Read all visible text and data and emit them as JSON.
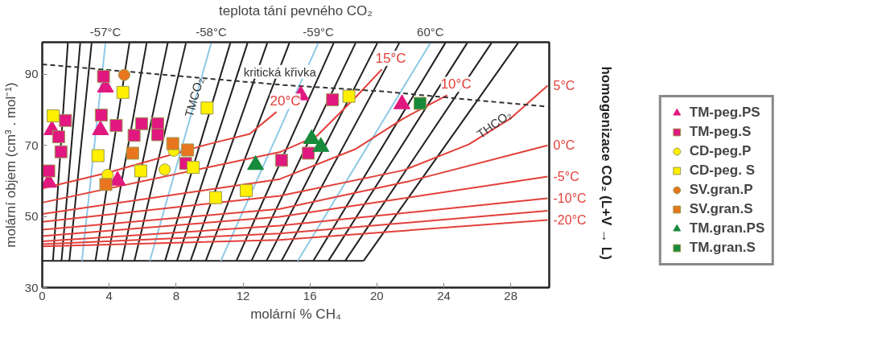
{
  "chart_data": {
    "type": "scatter",
    "xlabel": "molární % CH₄",
    "ylabel": "molární objem (cm³ . mol⁻¹)",
    "x2label": "teplota tání pevného CO₂",
    "y2label": "homogenizace  CO₂ (L+V → L)",
    "xlim": [
      0,
      30.3
    ],
    "ylim": [
      30,
      99
    ],
    "xticks": [
      0,
      4,
      8,
      12,
      16,
      20,
      24,
      28
    ],
    "yticks": [
      30,
      50,
      70,
      90
    ],
    "grid": false,
    "legend": "right",
    "annotations": [
      {
        "text": "kritická křivka",
        "x": 14.2,
        "y": 90.7
      },
      {
        "text": "TMCO₂",
        "x": 9.06,
        "y": 83.5
      },
      "THCO₂"
    ],
    "series": [
      {
        "type": "line",
        "color": "#231f20",
        "x": [
          0,
          19.2
        ],
        "values": [
          37.5,
          37.5
        ]
      },
      {
        "type": "line",
        "color": "#231f20",
        "x": [
          0.64,
          1.53
        ],
        "values": [
          37.5,
          98.8
        ]
      },
      {
        "type": "line",
        "color": "#231f20",
        "x": [
          1.15,
          2.27
        ],
        "values": [
          37.5,
          98.8
        ]
      },
      {
        "type": "line",
        "color": "#231f20",
        "x": [
          1.62,
          2.95
        ],
        "values": [
          37.5,
          98.8
        ]
      },
      {
        "type": "line",
        "color": "#231f20",
        "x": [
          3.18,
          5.21
        ],
        "values": [
          37.5,
          98.8
        ]
      },
      {
        "type": "line",
        "color": "#231f20",
        "x": [
          3.89,
          6.24
        ],
        "values": [
          37.5,
          98.8
        ]
      },
      {
        "type": "line",
        "color": "#231f20",
        "x": [
          4.76,
          7.5
        ],
        "values": [
          37.5,
          98.8
        ]
      },
      {
        "type": "line",
        "color": "#231f20",
        "x": [
          5.51,
          8.59
        ],
        "values": [
          37.5,
          98.8
        ]
      },
      {
        "type": "line",
        "color": "#231f20",
        "x": [
          7.34,
          11.24
        ],
        "values": [
          37.5,
          98.8
        ]
      },
      {
        "type": "line",
        "color": "#231f20",
        "x": [
          8.05,
          12.27
        ],
        "values": [
          37.5,
          98.8
        ]
      },
      {
        "type": "line",
        "color": "#231f20",
        "x": [
          8.86,
          13.45
        ],
        "values": [
          37.5,
          98.8
        ]
      },
      {
        "type": "line",
        "color": "#231f20",
        "x": [
          9.77,
          14.77
        ],
        "values": [
          37.5,
          98.8
        ]
      },
      {
        "type": "line",
        "color": "#231f20",
        "x": [
          11.6,
          17.42
        ],
        "values": [
          37.5,
          98.8
        ]
      },
      {
        "type": "line",
        "color": "#231f20",
        "x": [
          12.5,
          18.73
        ],
        "values": [
          37.5,
          98.8
        ]
      },
      {
        "type": "line",
        "color": "#231f20",
        "x": [
          13.4,
          20.03
        ],
        "values": [
          37.5,
          98.8
        ]
      },
      {
        "type": "line",
        "color": "#231f20",
        "x": [
          14.3,
          21.34
        ],
        "values": [
          37.5,
          98.8
        ]
      },
      {
        "type": "line",
        "color": "#231f20",
        "x": [
          16.2,
          24.09
        ],
        "values": [
          37.5,
          98.8
        ]
      },
      {
        "type": "line",
        "color": "#231f20",
        "x": [
          17.1,
          25.4
        ],
        "values": [
          37.5,
          98.8
        ]
      },
      {
        "type": "line",
        "color": "#231f20",
        "x": [
          18.1,
          26.85
        ],
        "values": [
          37.5,
          98.8
        ]
      },
      {
        "type": "line",
        "color": "#231f20",
        "x": [
          19.2,
          28.44
        ],
        "values": [
          37.5,
          98.8
        ]
      },
      {
        "type": "line",
        "name": "-57°C",
        "color": "#8ec9e6",
        "x": [
          2.37,
          3.78
        ],
        "values": [
          37.5,
          98.8
        ]
      },
      {
        "type": "line",
        "name": "-58°C",
        "color": "#8ec9e6",
        "x": [
          6.43,
          10.1
        ],
        "values": [
          37.5,
          98.8
        ]
      },
      {
        "type": "line",
        "name": "-59°C",
        "color": "#8ec9e6",
        "x": [
          10.67,
          16.5
        ],
        "values": [
          37.5,
          98.8
        ]
      },
      {
        "type": "line",
        "name": "60°C",
        "color": "#8ec9e6",
        "x": [
          15.27,
          23.2
        ],
        "values": [
          37.5,
          98.8
        ]
      },
      {
        "type": "line",
        "name": "20°C",
        "color": "#e2403a",
        "x": [
          0,
          3.9,
          9.9,
          12.4,
          14
        ],
        "values": [
          57.9,
          62.3,
          70.3,
          73.2,
          79.4
        ]
      },
      {
        "type": "line",
        "name": "15°C",
        "color": "#e2403a",
        "x": [
          0,
          14.2,
          16.4,
          18.7,
          20.3
        ],
        "values": [
          53.9,
          68.1,
          72.6,
          83.4,
          91.4
        ]
      },
      {
        "type": "line",
        "name": "10°C",
        "color": "#e2403a",
        "x": [
          0,
          14.2,
          18.7,
          21.6,
          24.2
        ],
        "values": [
          50.7,
          60.5,
          68.9,
          77.6,
          84.1
        ]
      },
      {
        "type": "line",
        "name": "5°C",
        "color": "#e2403a",
        "x": [
          0,
          14.2,
          21.6,
          25.5,
          28,
          30.2
        ],
        "values": [
          48.5,
          55.8,
          63,
          70.3,
          77.6,
          86.8
        ]
      },
      {
        "type": "line",
        "name": "0°C",
        "color": "#e2403a",
        "x": [
          0,
          14.2,
          22,
          30.2
        ],
        "values": [
          46.3,
          52.1,
          60,
          70
        ]
      },
      {
        "type": "line",
        "name": "-5°C",
        "color": "#e2403a",
        "x": [
          0,
          14.2,
          30.2
        ],
        "values": [
          44.5,
          49.9,
          61.2
        ]
      },
      {
        "type": "line",
        "name": "-10°C",
        "color": "#e2403a",
        "x": [
          0,
          14.2,
          30.2
        ],
        "values": [
          43,
          47.4,
          55.1
        ]
      },
      {
        "type": "line",
        "color": "#e2403a",
        "x": [
          0,
          14.2,
          30.2
        ],
        "values": [
          42.2,
          45.2,
          51.6
        ]
      },
      {
        "type": "line",
        "name": "-20°C",
        "color": "#e2403a",
        "x": [
          0,
          14.2,
          30.2
        ],
        "values": [
          41.6,
          43.4,
          49
        ]
      },
      {
        "type": "line",
        "color": "#333333",
        "line_style": "dashed",
        "x": [
          0,
          14.3,
          20.3,
          26.1,
          30.2
        ],
        "values": [
          92.8,
          87,
          85.2,
          82.6,
          80.9
        ]
      },
      {
        "name": "TM-peg.PS",
        "marker": "triangle",
        "color": "#e0187f",
        "x": [
          0.39,
          0.58,
          3.78,
          3.48,
          4.5,
          15.45,
          21.5
        ],
        "values": [
          59.5,
          74.3,
          86.3,
          74.3,
          60.1,
          84.1,
          81.6
        ]
      },
      {
        "name": "TM-peg.S",
        "marker": "square",
        "color": "#e0187f",
        "x": [
          0.39,
          1.39,
          0.98,
          1.12,
          3.66,
          3.53,
          4.42,
          5.49,
          5.94,
          6.9,
          6.9,
          8.57,
          14.3,
          17.35,
          15.9
        ],
        "values": [
          62.8,
          77,
          72.4,
          68.2,
          89.4,
          78.5,
          75.6,
          72.8,
          76.1,
          76.1,
          73,
          64.9,
          65.8,
          82.8,
          67.8
        ]
      },
      {
        "name": "CD-peg.P",
        "marker": "circle",
        "color": "#ffef00",
        "x": [
          3.9,
          7.32,
          7.86
        ],
        "values": [
          61.7,
          63.2,
          68.5
        ]
      },
      {
        "name": "CD-peg. S",
        "marker": "square",
        "color": "#ffef00",
        "x": [
          0.65,
          4.82,
          9.85,
          3.33,
          5.89,
          9.02,
          10.36,
          12.19,
          18.33
        ],
        "values": [
          78.3,
          84.9,
          80.5,
          67.1,
          62.8,
          63.8,
          55.3,
          57.3,
          83.8
        ]
      },
      {
        "name": "SV.gran.P",
        "marker": "circle",
        "color": "#e8761f",
        "x": [
          4.9
        ],
        "values": [
          89.8
        ]
      },
      {
        "name": "SV.gran.S",
        "marker": "square",
        "color": "#e8761f",
        "x": [
          7.8,
          5.4,
          8.69,
          3.8
        ],
        "values": [
          70.5,
          67.8,
          68.7,
          59
        ]
      },
      {
        "name": "TM.gran.PS",
        "marker": "triangle",
        "color": "#188a3c",
        "x": [
          12.75,
          16.1,
          16.65
        ],
        "values": [
          64.5,
          71.8,
          69.6
        ]
      },
      {
        "name": "TM.gran.S",
        "marker": "square",
        "color": "#188a3c",
        "x": [
          22.58
        ],
        "values": [
          81.8
        ]
      }
    ]
  }
}
